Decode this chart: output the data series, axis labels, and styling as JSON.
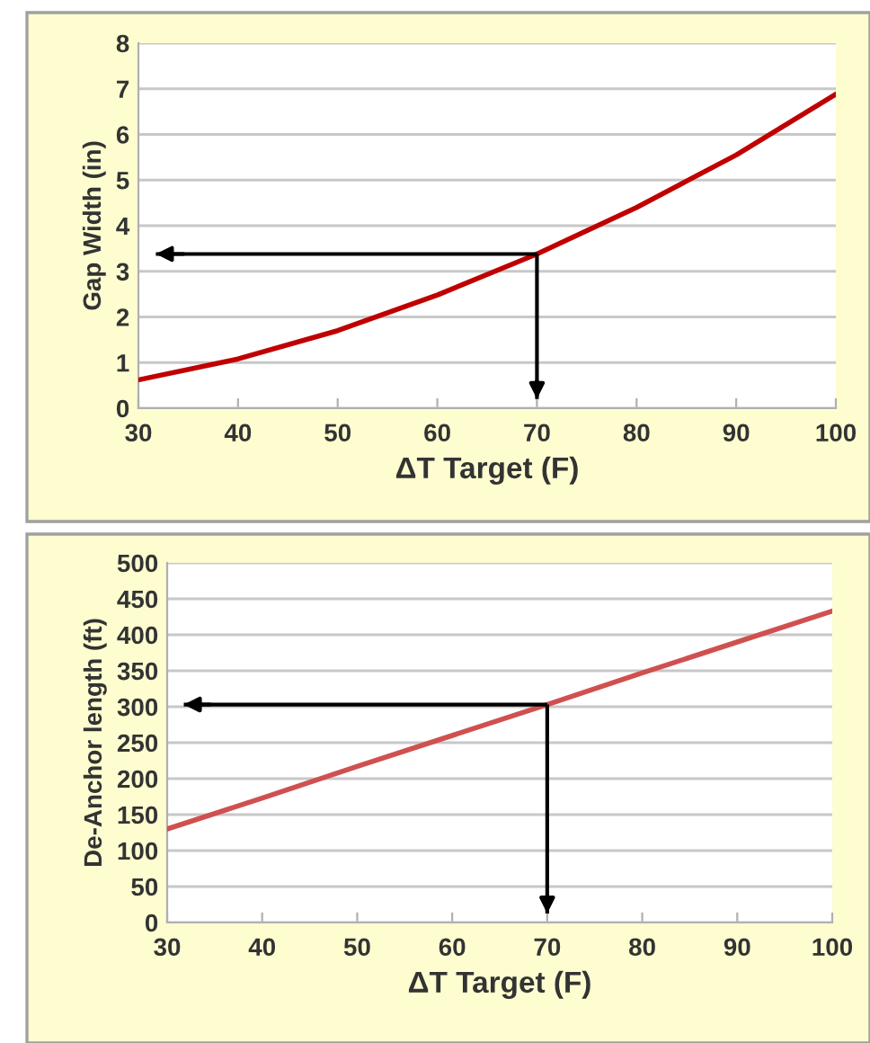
{
  "chart_data": [
    {
      "type": "line",
      "xlabel": "ΔT Target (F)",
      "ylabel": "Gap Width (in)",
      "x": [
        30,
        40,
        50,
        60,
        70,
        80,
        90,
        100
      ],
      "series": [
        {
          "color": "#c00000",
          "values": [
            0.62,
            1.08,
            1.7,
            2.48,
            3.38,
            4.4,
            5.55,
            6.88
          ]
        }
      ],
      "xlim": [
        30,
        100
      ],
      "xticks": [
        30,
        40,
        50,
        60,
        70,
        80,
        90,
        100
      ],
      "ylim": [
        0,
        8
      ],
      "yticks": [
        0,
        1,
        2,
        3,
        4,
        5,
        6,
        7,
        8
      ],
      "grid": "y",
      "ref_lines": [
        {
          "axis": "x",
          "value": 70,
          "color": "#000000"
        },
        {
          "axis": "y",
          "value": 3.38,
          "color": "#000000"
        }
      ]
    },
    {
      "type": "line",
      "xlabel": "ΔT Target (F)",
      "ylabel": "De-Anchor length (ft)",
      "x": [
        30,
        40,
        50,
        60,
        70,
        80,
        90,
        100
      ],
      "series": [
        {
          "color": "#d05050",
          "values": [
            130,
            173,
            217,
            260,
            303,
            347,
            390,
            433
          ]
        }
      ],
      "xlim": [
        30,
        100
      ],
      "xticks": [
        30,
        40,
        50,
        60,
        70,
        80,
        90,
        100
      ],
      "ylim": [
        0,
        500
      ],
      "yticks": [
        0,
        50,
        100,
        150,
        200,
        250,
        300,
        350,
        400,
        450,
        500
      ],
      "grid": "y",
      "ref_lines": [
        {
          "axis": "x",
          "value": 70,
          "color": "#000000"
        },
        {
          "axis": "y",
          "value": 303,
          "color": "#000000"
        }
      ]
    }
  ]
}
